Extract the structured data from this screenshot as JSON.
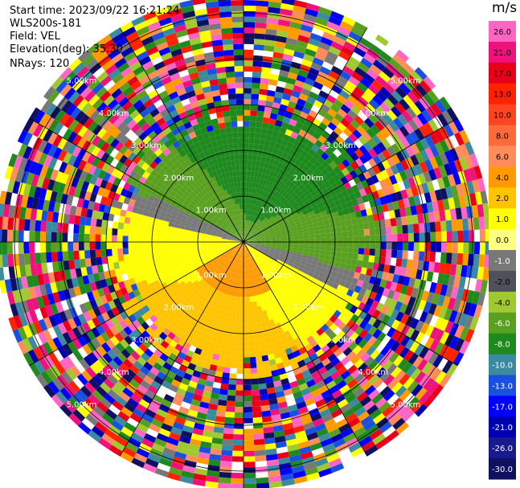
{
  "chart_data": {
    "type": "heatmap",
    "subtype": "ppi-radar",
    "info": [
      "Start time: 2023/09/22 16:21:24",
      "WLS200s-181",
      "Field: VEL",
      "Elevation(deg): 35.30",
      "NRays: 120"
    ],
    "range_rings_km": [
      1,
      2,
      3,
      4,
      5
    ],
    "range_ring_labels": [
      "1.00km",
      "2.00km",
      "3.00km",
      "4.00km",
      "5.00km"
    ],
    "max_range_km": 5.4,
    "nrays": 120,
    "colorbar": {
      "unit": "m/s",
      "ticks": [
        "26.0",
        "21.0",
        "17.0",
        "13.0",
        "10.0",
        "8.0",
        "6.0",
        "4.0",
        "2.0",
        "1.0",
        "0.0",
        "-1.0",
        "-2.0",
        "-4.0",
        "-6.0",
        "-8.0",
        "-10.0",
        "-13.0",
        "-17.0",
        "-21.0",
        "-26.0",
        "-30.0"
      ],
      "colors": [
        "#ff66c4",
        "#f0127c",
        "#e8001a",
        "#ff2200",
        "#ff4422",
        "#ff6a3a",
        "#ff8c5a",
        "#ff9a00",
        "#ffc400",
        "#ffff00",
        "#ffff80",
        "#787878",
        "#50505a",
        "#a0c830",
        "#5aa020",
        "#1e8a1e",
        "#3a8aa0",
        "#1a50e0",
        "#0000ff",
        "#0000b0",
        "#1a1a90",
        "#101060"
      ]
    },
    "wind_field": {
      "inner_signal_range_km": 2.6,
      "positive_sector_deg": [
        20,
        200
      ],
      "negative_sector_deg": [
        200,
        380
      ]
    }
  }
}
